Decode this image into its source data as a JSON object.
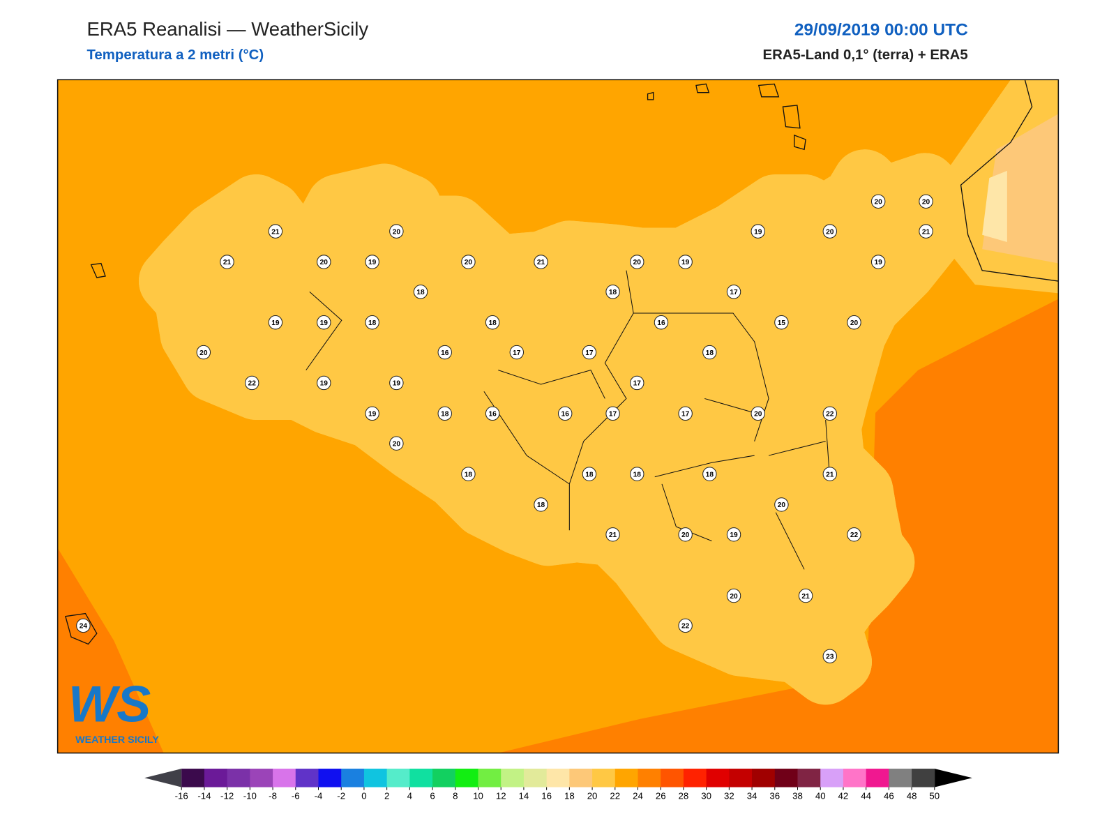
{
  "header": {
    "title": "ERA5 Reanalisi — WeatherSicily",
    "subtitle": "Temperatura a 2 metri (°C)",
    "date": "29/09/2019 00:00 UTC",
    "source": "ERA5-Land 0,1° (terra) + ERA5"
  },
  "logo": {
    "mark": "WS",
    "name": "WEATHER SICILY"
  },
  "stations": [
    21,
    20,
    21,
    20,
    19,
    20,
    21,
    20,
    19,
    19,
    20,
    20,
    20,
    21,
    19,
    18,
    18,
    17,
    19,
    19,
    18,
    18,
    16,
    15,
    20,
    20,
    16,
    17,
    17,
    18,
    22,
    19,
    19,
    17,
    19,
    18,
    16,
    16,
    17,
    17,
    20,
    22,
    20,
    18,
    18,
    18,
    18,
    21,
    18,
    20,
    21,
    20,
    19,
    22,
    20,
    21,
    22,
    23,
    24
  ],
  "colorbar": {
    "ticks": [
      -16,
      -14,
      -12,
      -10,
      -8,
      -6,
      -4,
      -2,
      0,
      2,
      4,
      6,
      8,
      10,
      12,
      14,
      16,
      18,
      20,
      22,
      24,
      26,
      28,
      30,
      32,
      34,
      36,
      38,
      40,
      42,
      44,
      46,
      48,
      50
    ],
    "colors": [
      "#3b0a4c",
      "#6b1a98",
      "#7b31a8",
      "#9b44b8",
      "#d874ea",
      "#6033c8",
      "#1010f0",
      "#1a80e0",
      "#10c4e0",
      "#55ecca",
      "#10e0a0",
      "#12d060",
      "#12ee12",
      "#72ee42",
      "#c2f285",
      "#e2ea9a",
      "#fee6a8",
      "#fdc878",
      "#ffc844",
      "#ffa500",
      "#ff8000",
      "#ff5500",
      "#ff2200",
      "#e00000",
      "#c40000",
      "#a00000",
      "#700018",
      "#802444",
      "#d8a0f8",
      "#ff74c8",
      "#f01890",
      "#808080",
      "#404040"
    ],
    "under": "#404048",
    "over": "#000000"
  }
}
